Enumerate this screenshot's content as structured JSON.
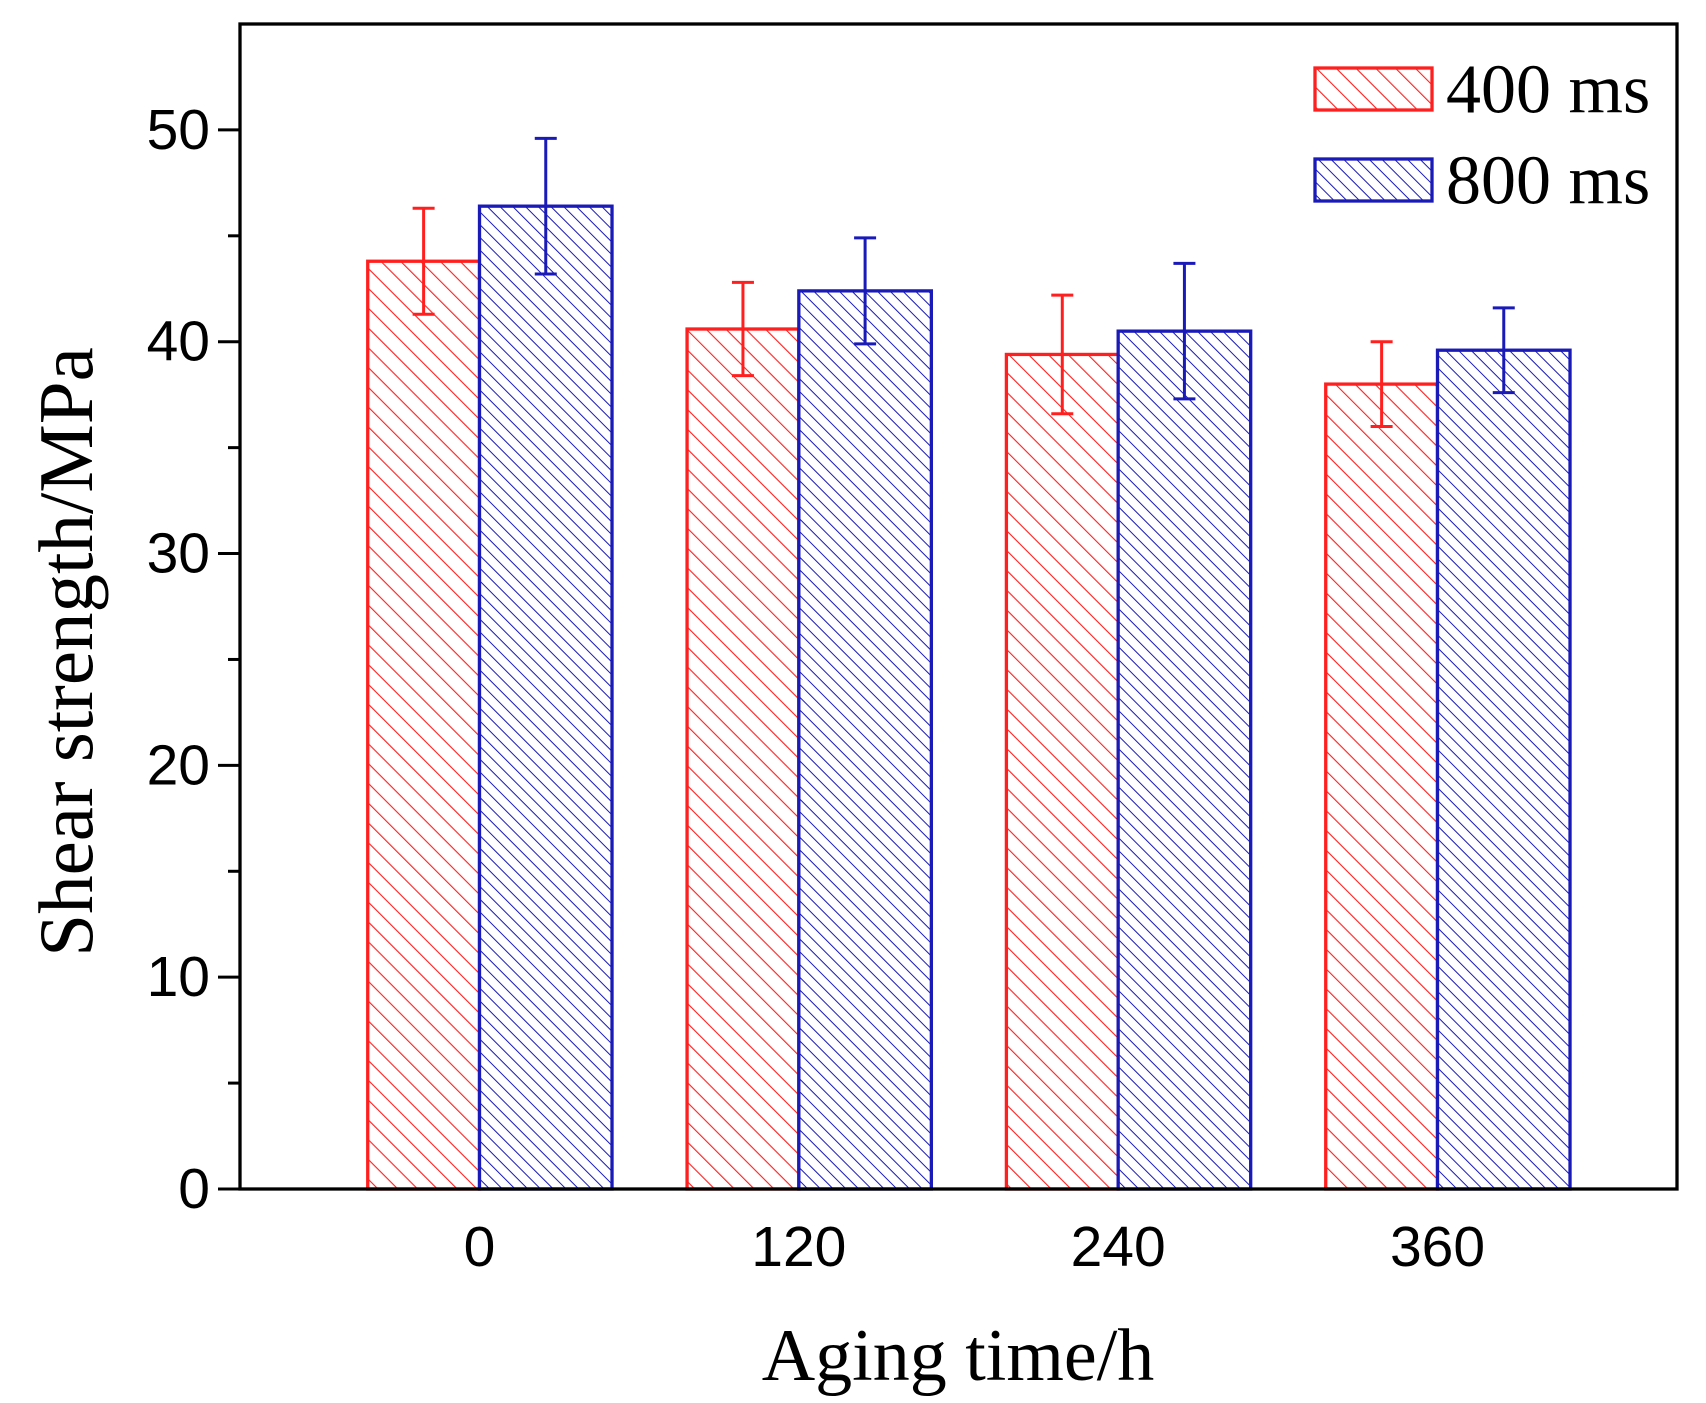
{
  "chart_data": {
    "type": "bar",
    "title": "",
    "xlabel": "Aging time/h",
    "ylabel": "Shear strength/MPa",
    "categories": [
      "0",
      "120",
      "240",
      "360"
    ],
    "ylim": [
      0,
      55
    ],
    "yticks": [
      0,
      10,
      20,
      30,
      40,
      50
    ],
    "y_minor_step": 5,
    "grid": false,
    "legend": "top-right",
    "series": [
      {
        "name": "400 ms",
        "color": "#ff1f1f",
        "values": [
          43.8,
          40.6,
          39.4,
          38.0
        ],
        "errors": [
          2.5,
          2.2,
          2.8,
          2.0
        ]
      },
      {
        "name": "800 ms",
        "color": "#1a1ab8",
        "values": [
          46.4,
          42.4,
          40.5,
          39.6
        ],
        "errors": [
          3.2,
          2.5,
          3.2,
          2.0
        ]
      }
    ]
  }
}
